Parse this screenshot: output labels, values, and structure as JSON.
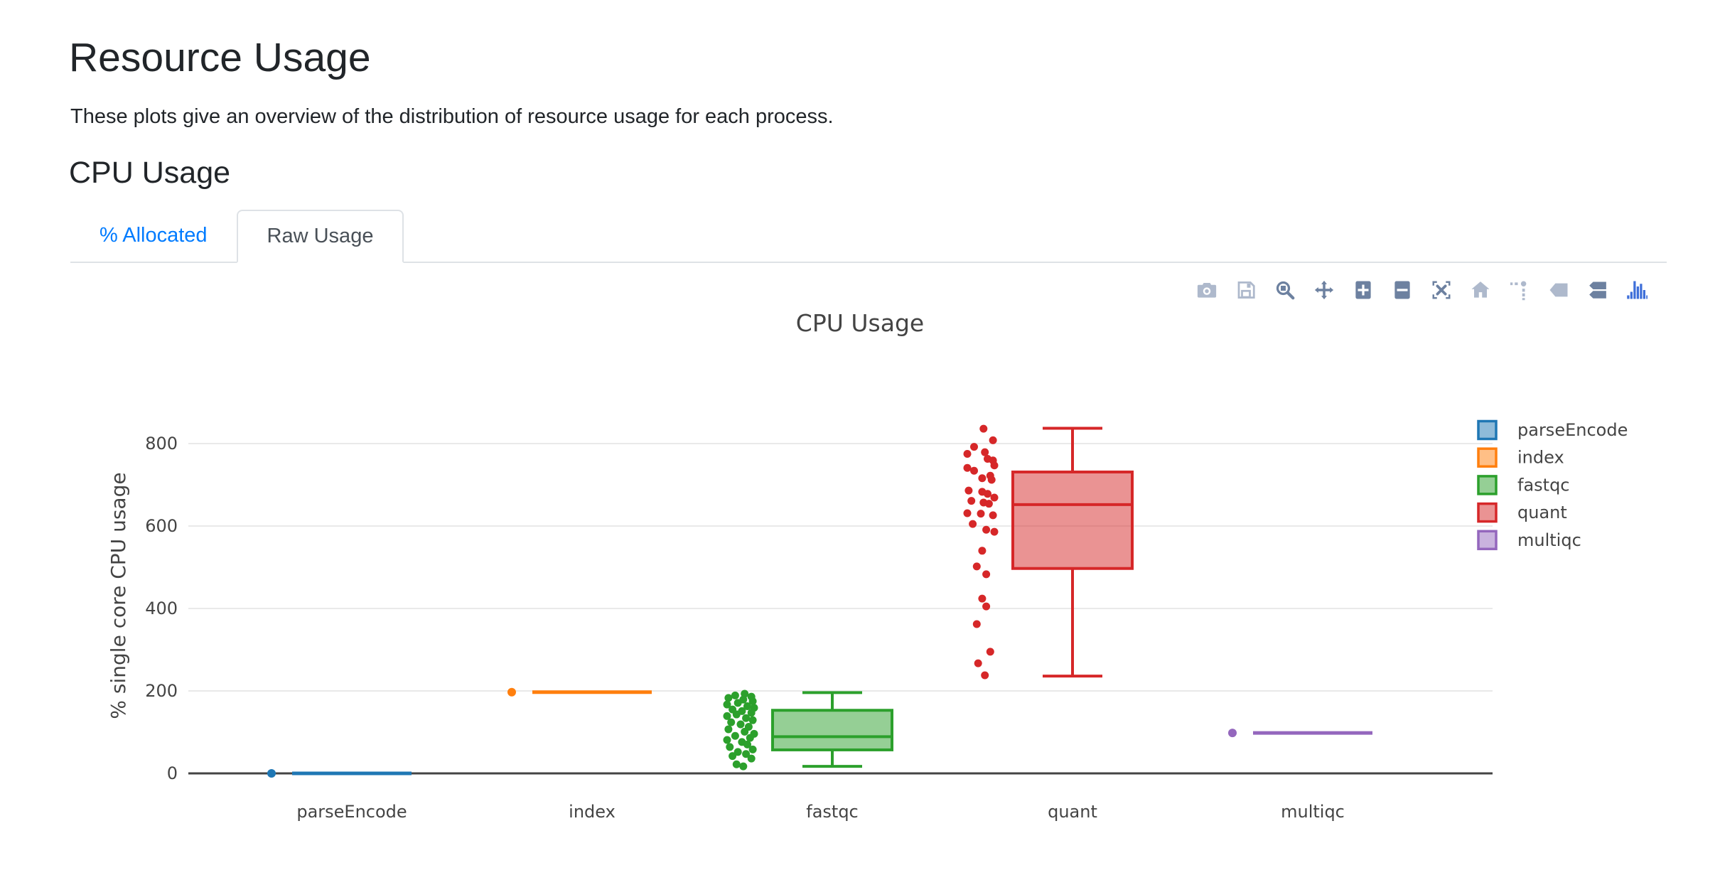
{
  "page": {
    "title": "Resource Usage",
    "subtitle": "These plots give an overview of the distribution of resource usage for each process.",
    "section_heading": "CPU Usage"
  },
  "tabs": [
    {
      "label": "% Allocated",
      "active": false
    },
    {
      "label": "Raw Usage",
      "active": true
    }
  ],
  "colors": {
    "link_blue": "#007bff",
    "tab_active_text": "#495057",
    "tab_border": "#dee2e6",
    "chart_text": "#444444",
    "gridline": "#e9e9e9",
    "zeroline": "#444444",
    "modebar_light": "#aeb9cc",
    "modebar_dark": "#6d81a0",
    "modebar_logo_blue": "#3e6fd9"
  },
  "modebar_icons": [
    {
      "name": "camera-icon",
      "tone": "light"
    },
    {
      "name": "save-icon",
      "tone": "light"
    },
    {
      "name": "zoom-icon",
      "tone": "dark"
    },
    {
      "name": "pan-icon",
      "tone": "dark"
    },
    {
      "name": "zoom-in-icon",
      "tone": "dark"
    },
    {
      "name": "zoom-out-icon",
      "tone": "dark"
    },
    {
      "name": "autoscale-icon",
      "tone": "dark"
    },
    {
      "name": "home-icon",
      "tone": "light"
    },
    {
      "name": "spikelines-icon",
      "tone": "light"
    },
    {
      "name": "hover-closest-icon",
      "tone": "light"
    },
    {
      "name": "hover-compare-icon",
      "tone": "dark"
    },
    {
      "name": "plotly-logo-icon",
      "tone": "logo"
    }
  ],
  "chart_data": {
    "type": "box",
    "title": "CPU Usage",
    "ylabel": "% single core CPU usage",
    "xlabel": "",
    "yticks": [
      0,
      200,
      400,
      600,
      800
    ],
    "ylim": [
      -45,
      870
    ],
    "grid": true,
    "legend_position": "right",
    "categories": [
      "parseEncode",
      "index",
      "fastqc",
      "quant",
      "multiqc"
    ],
    "series": [
      {
        "name": "parseEncode",
        "color": "#1f77b4",
        "box": {
          "min": 0,
          "q1": 0,
          "median": 0,
          "q3": 0,
          "max": 0
        },
        "points": [
          0
        ],
        "jitter": [
          0
        ]
      },
      {
        "name": "index",
        "color": "#ff7f0e",
        "box": {
          "min": 197,
          "q1": 197,
          "median": 197,
          "q3": 197,
          "max": 197
        },
        "points": [
          197
        ],
        "jitter": [
          0
        ]
      },
      {
        "name": "fastqc",
        "color": "#2ca02c",
        "box": {
          "min": 17,
          "q1": 57,
          "median": 89,
          "q3": 153,
          "max": 196
        },
        "points": [
          193,
          189,
          186,
          183,
          179,
          175,
          171,
          167,
          163,
          159,
          155,
          151,
          147,
          143,
          139,
          134,
          129,
          124,
          119,
          113,
          107,
          101,
          96,
          91,
          86,
          81,
          76,
          70,
          64,
          58,
          52,
          47,
          42,
          36,
          22,
          17
        ],
        "jitter": [
          0.3,
          -0.4,
          0.8,
          -0.9,
          0.2,
          0.9,
          -0.2,
          -1.0,
          0.5,
          1.0,
          -0.6,
          0.1,
          0.8,
          -0.3,
          -1.0,
          0.4,
          0.9,
          -0.7,
          0.0,
          0.6,
          -0.9,
          0.3,
          1.0,
          -0.4,
          0.7,
          -1.0,
          0.1,
          0.5,
          -0.8,
          0.9,
          -0.2,
          0.4,
          -0.6,
          0.8,
          -0.3,
          0.2
        ]
      },
      {
        "name": "quant",
        "color": "#d62728",
        "box": {
          "min": 236,
          "q1": 497,
          "median": 652,
          "q3": 731,
          "max": 837
        },
        "points": [
          836,
          808,
          792,
          779,
          775,
          763,
          759,
          747,
          741,
          734,
          722,
          716,
          712,
          686,
          683,
          678,
          669,
          661,
          657,
          654,
          631,
          630,
          626,
          605,
          591,
          586,
          540,
          502,
          483,
          424,
          405,
          362,
          295,
          267,
          238
        ],
        "jitter": [
          0.2,
          0.9,
          -0.5,
          0.3,
          -1.0,
          0.5,
          0.9,
          1.0,
          -1.0,
          -0.5,
          0.7,
          0.1,
          0.8,
          -0.9,
          0.1,
          0.5,
          1.0,
          -0.7,
          0.2,
          0.6,
          -1.0,
          0.0,
          0.9,
          -0.6,
          0.4,
          1.0,
          0.1,
          -0.3,
          0.4,
          0.1,
          0.4,
          -0.3,
          0.7,
          -0.2,
          0.3
        ]
      },
      {
        "name": "multiqc",
        "color": "#9467bd",
        "box": {
          "min": 98,
          "q1": 98,
          "median": 98,
          "q3": 98,
          "max": 98
        },
        "points": [
          98
        ],
        "jitter": [
          0
        ]
      }
    ]
  }
}
